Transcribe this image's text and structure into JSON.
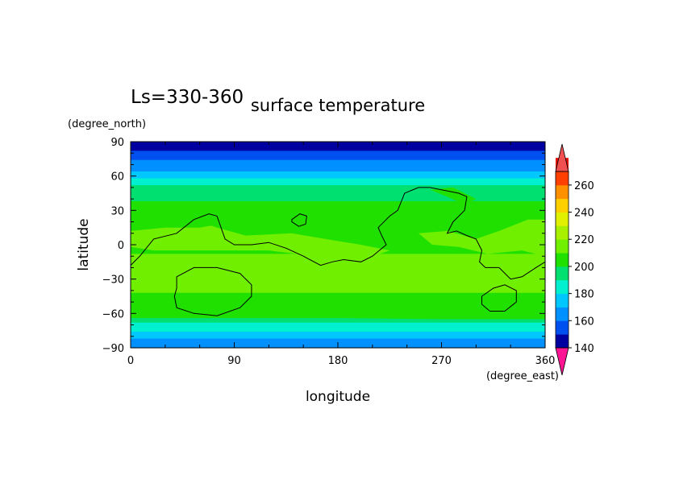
{
  "chart_data": {
    "type": "heatmap",
    "title": "surface temperature",
    "subtitle": "Ls=330-360",
    "xlabel": "longitude",
    "ylabel": "latitude",
    "xunit": "(degree_east)",
    "yunit": "(degree_north)",
    "xlim": [
      0,
      360
    ],
    "ylim": [
      -90,
      90
    ],
    "xticks": [
      "0",
      "90",
      "180",
      "270",
      "360"
    ],
    "yticks": [
      "90",
      "60",
      "30",
      "0",
      "−30",
      "−60",
      "−90"
    ],
    "colorbar": {
      "levels": [
        140,
        150,
        160,
        170,
        180,
        190,
        200,
        210,
        220,
        230,
        240,
        250,
        260,
        270
      ],
      "labels": [
        "140",
        "160",
        "180",
        "200",
        "220",
        "240",
        "260"
      ],
      "colors": [
        "#0000a0",
        "#0050f0",
        "#0090ff",
        "#00c8ff",
        "#00f0d0",
        "#00e070",
        "#20e000",
        "#70f000",
        "#a8f000",
        "#e0f000",
        "#ffd000",
        "#ff9000",
        "#ff4000",
        "#e01000"
      ],
      "under_color": "#ff1493",
      "over_color": "#f05050"
    },
    "latitude_bands": [
      {
        "lat_max": 90,
        "lat_min": 82,
        "value": 145
      },
      {
        "lat_max": 82,
        "lat_min": 74,
        "value": 155
      },
      {
        "lat_max": 74,
        "lat_min": 64,
        "value": 165
      },
      {
        "lat_max": 64,
        "lat_min": 58,
        "value": 175
      },
      {
        "lat_max": 58,
        "lat_min": 52,
        "value": 185
      },
      {
        "lat_max": 52,
        "lat_min": 38,
        "value": 195
      },
      {
        "lat_max": 38,
        "lat_min": 18,
        "value": 205
      },
      {
        "lat_max": 18,
        "lat_min": -8,
        "value": 205
      },
      {
        "lat_max": -8,
        "lat_min": -42,
        "value": 215
      },
      {
        "lat_max": -42,
        "lat_min": -58,
        "value": 205
      },
      {
        "lat_max": -58,
        "lat_min": -68,
        "value": 195
      },
      {
        "lat_max": -68,
        "lat_min": -76,
        "value": 185
      },
      {
        "lat_max": -76,
        "lat_min": -82,
        "value": 175
      },
      {
        "lat_max": -82,
        "lat_min": -90,
        "value": 165
      }
    ],
    "warm_regions": [
      {
        "value": 215,
        "points": [
          [
            0,
            18
          ],
          [
            30,
            20
          ],
          [
            55,
            22
          ],
          [
            75,
            15
          ],
          [
            100,
            8
          ],
          [
            140,
            10
          ],
          [
            175,
            4
          ],
          [
            200,
            0
          ],
          [
            225,
            -5
          ],
          [
            205,
            -12
          ],
          [
            160,
            -10
          ],
          [
            120,
            -5
          ],
          [
            60,
            -5
          ],
          [
            20,
            -5
          ],
          [
            0,
            -2
          ]
        ]
      },
      {
        "value": 215,
        "points": [
          [
            250,
            10
          ],
          [
            275,
            12
          ],
          [
            300,
            5
          ],
          [
            320,
            12
          ],
          [
            345,
            22
          ],
          [
            360,
            22
          ],
          [
            360,
            -10
          ],
          [
            340,
            -5
          ],
          [
            310,
            -8
          ],
          [
            285,
            -2
          ],
          [
            262,
            0
          ]
        ]
      },
      {
        "value": 205,
        "points": [
          [
            0,
            20
          ],
          [
            25,
            30
          ],
          [
            60,
            32
          ],
          [
            80,
            28
          ],
          [
            90,
            20
          ],
          [
            60,
            15
          ],
          [
            30,
            15
          ],
          [
            0,
            12
          ]
        ]
      },
      {
        "value": 205,
        "points": [
          [
            260,
            48
          ],
          [
            275,
            42
          ],
          [
            290,
            35
          ],
          [
            300,
            40
          ],
          [
            280,
            50
          ]
        ]
      },
      {
        "value": 205,
        "points": [
          [
            0,
            -58
          ],
          [
            80,
            -58
          ],
          [
            180,
            -58
          ],
          [
            270,
            -58
          ],
          [
            360,
            -58
          ],
          [
            360,
            -65
          ],
          [
            270,
            -65
          ],
          [
            180,
            -64
          ],
          [
            90,
            -64
          ],
          [
            0,
            -64
          ]
        ]
      }
    ],
    "topography_contours": [
      {
        "closed": false,
        "points": [
          [
            0,
            -18
          ],
          [
            8,
            -10
          ],
          [
            20,
            5
          ],
          [
            40,
            10
          ],
          [
            55,
            22
          ],
          [
            68,
            27
          ],
          [
            75,
            25
          ],
          [
            82,
            5
          ],
          [
            90,
            0
          ],
          [
            105,
            0
          ],
          [
            120,
            2
          ],
          [
            135,
            -3
          ],
          [
            150,
            -10
          ],
          [
            165,
            -18
          ],
          [
            175,
            -15
          ],
          [
            185,
            -13
          ],
          [
            200,
            -15
          ],
          [
            210,
            -10
          ],
          [
            222,
            0
          ],
          [
            218,
            8
          ],
          [
            215,
            15
          ],
          [
            225,
            25
          ],
          [
            232,
            30
          ],
          [
            238,
            45
          ],
          [
            250,
            50
          ],
          [
            260,
            50
          ],
          [
            270,
            48
          ],
          [
            285,
            45
          ],
          [
            292,
            42
          ],
          [
            290,
            30
          ],
          [
            280,
            20
          ],
          [
            275,
            10
          ],
          [
            283,
            12
          ],
          [
            292,
            8
          ],
          [
            300,
            5
          ],
          [
            305,
            -5
          ],
          [
            303,
            -15
          ],
          [
            308,
            -20
          ],
          [
            320,
            -20
          ],
          [
            330,
            -30
          ],
          [
            340,
            -28
          ],
          [
            352,
            -20
          ],
          [
            360,
            -15
          ]
        ]
      },
      {
        "closed": true,
        "points": [
          [
            140,
            22
          ],
          [
            147,
            27
          ],
          [
            153,
            25
          ],
          [
            152,
            18
          ],
          [
            146,
            16
          ],
          [
            140,
            20
          ]
        ]
      },
      {
        "closed": true,
        "points": [
          [
            40,
            -28
          ],
          [
            55,
            -20
          ],
          [
            75,
            -20
          ],
          [
            95,
            -25
          ],
          [
            105,
            -35
          ],
          [
            105,
            -45
          ],
          [
            95,
            -55
          ],
          [
            75,
            -62
          ],
          [
            55,
            -60
          ],
          [
            40,
            -55
          ],
          [
            38,
            -45
          ],
          [
            40,
            -38
          ]
        ]
      },
      {
        "closed": true,
        "points": [
          [
            305,
            -45
          ],
          [
            315,
            -38
          ],
          [
            325,
            -35
          ],
          [
            335,
            -40
          ],
          [
            335,
            -50
          ],
          [
            325,
            -58
          ],
          [
            312,
            -58
          ],
          [
            305,
            -52
          ]
        ]
      }
    ]
  }
}
